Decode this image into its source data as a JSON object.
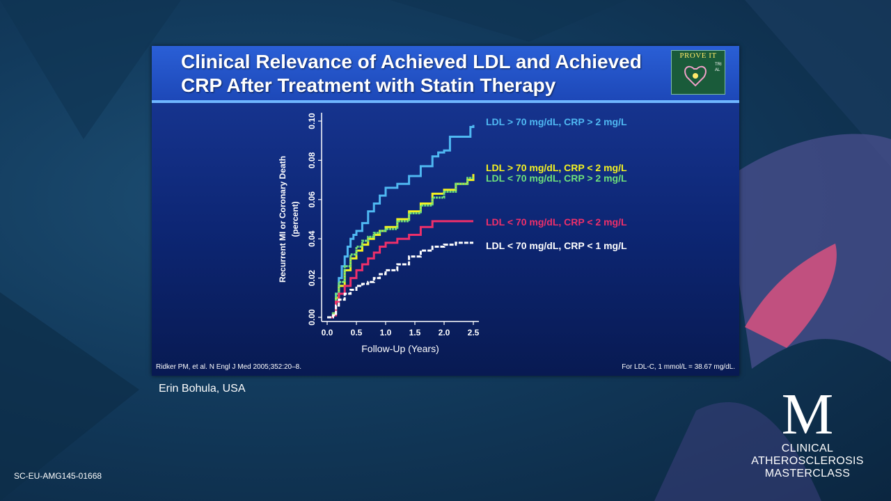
{
  "slide": {
    "title_line1": "Clinical Relevance of Achieved LDL and Achieved",
    "title_line2": "CRP After Treatment with Statin Therapy",
    "logo_text": "PROVE IT",
    "logo_side": "TRIAL",
    "citation": "Ridker PM, et al. N Engl J Med 2005;352:20–8.",
    "conversion": "For LDL-C, 1 mmol/L = 38.67 mg/dL."
  },
  "presenter": "Erin Bohula, USA",
  "doc_code": "SC-EU-AMG145-01668",
  "brand": {
    "mark": "M",
    "line1": "CLINICAL",
    "line2": "ATHEROSCLEROSIS",
    "line3": "MASTERCLASS"
  },
  "colors": {
    "series_blue": "#4fb8f2",
    "series_yellow": "#f4f221",
    "series_green": "#6fe07a",
    "series_red": "#ee2f6a",
    "series_white": "#ffffff"
  },
  "chart_data": {
    "type": "line",
    "xlabel": "Follow-Up (Years)",
    "ylabel_line1": "Recurrent MI or Coronary Death",
    "ylabel_line2": "(percent)",
    "xlim": [
      0.0,
      2.5
    ],
    "ylim": [
      0.0,
      0.1
    ],
    "x_ticks": [
      "0.0",
      "0.5",
      "1.0",
      "1.5",
      "2.0",
      "2.5"
    ],
    "y_ticks": [
      "0.00",
      "0.02",
      "0.04",
      "0.06",
      "0.08",
      "0.10"
    ],
    "grid": false,
    "series": [
      {
        "name": "LDL > 70 mg/dL, CRP > 2 mg/L",
        "color": "#4fb8f2",
        "x": [
          0.0,
          0.1,
          0.15,
          0.2,
          0.25,
          0.3,
          0.35,
          0.4,
          0.45,
          0.5,
          0.6,
          0.7,
          0.8,
          0.9,
          1.0,
          1.2,
          1.4,
          1.6,
          1.8,
          1.9,
          2.0,
          2.1,
          2.2,
          2.4,
          2.45,
          2.5
        ],
        "y": [
          0.0,
          0.002,
          0.012,
          0.02,
          0.026,
          0.031,
          0.036,
          0.04,
          0.042,
          0.044,
          0.048,
          0.054,
          0.058,
          0.062,
          0.066,
          0.068,
          0.072,
          0.077,
          0.082,
          0.084,
          0.085,
          0.092,
          0.092,
          0.092,
          0.097,
          0.098
        ]
      },
      {
        "name": "LDL > 70 mg/dL, CRP < 2 mg/L",
        "color": "#f4f221",
        "x": [
          0.0,
          0.1,
          0.15,
          0.2,
          0.3,
          0.4,
          0.5,
          0.6,
          0.7,
          0.8,
          0.9,
          1.0,
          1.2,
          1.4,
          1.6,
          1.8,
          2.0,
          2.2,
          2.4,
          2.5
        ],
        "y": [
          0.0,
          0.002,
          0.01,
          0.016,
          0.024,
          0.03,
          0.034,
          0.037,
          0.04,
          0.042,
          0.044,
          0.046,
          0.05,
          0.054,
          0.058,
          0.063,
          0.065,
          0.068,
          0.07,
          0.073
        ]
      },
      {
        "name": "LDL < 70 mg/dL, CRP > 2 mg/L",
        "color": "#6fe07a",
        "x": [
          0.0,
          0.1,
          0.15,
          0.2,
          0.3,
          0.4,
          0.5,
          0.6,
          0.7,
          0.8,
          0.9,
          1.0,
          1.2,
          1.4,
          1.6,
          1.8,
          2.0,
          2.2,
          2.4,
          2.5
        ],
        "y": [
          0.0,
          0.002,
          0.012,
          0.018,
          0.026,
          0.032,
          0.036,
          0.039,
          0.041,
          0.043,
          0.044,
          0.045,
          0.049,
          0.053,
          0.057,
          0.061,
          0.064,
          0.068,
          0.071,
          0.071
        ]
      },
      {
        "name": "LDL < 70 mg/dL, CRP < 2 mg/L",
        "color": "#ee2f6a",
        "x": [
          0.0,
          0.1,
          0.15,
          0.2,
          0.3,
          0.4,
          0.5,
          0.6,
          0.7,
          0.8,
          0.9,
          1.0,
          1.2,
          1.4,
          1.6,
          1.8,
          2.0,
          2.2,
          2.5
        ],
        "y": [
          0.0,
          0.001,
          0.008,
          0.012,
          0.016,
          0.02,
          0.024,
          0.027,
          0.03,
          0.033,
          0.036,
          0.038,
          0.04,
          0.042,
          0.046,
          0.049,
          0.049,
          0.049,
          0.049
        ]
      },
      {
        "name": "LDL < 70 mg/dL, CRP < 1 mg/L",
        "color": "#ffffff",
        "x": [
          0.0,
          0.1,
          0.15,
          0.2,
          0.3,
          0.4,
          0.5,
          0.6,
          0.7,
          0.8,
          0.9,
          1.0,
          1.2,
          1.4,
          1.6,
          1.8,
          2.0,
          2.2,
          2.5
        ],
        "y": [
          0.0,
          0.001,
          0.006,
          0.009,
          0.012,
          0.014,
          0.016,
          0.017,
          0.018,
          0.02,
          0.022,
          0.024,
          0.027,
          0.031,
          0.034,
          0.036,
          0.037,
          0.038,
          0.038
        ]
      }
    ]
  }
}
